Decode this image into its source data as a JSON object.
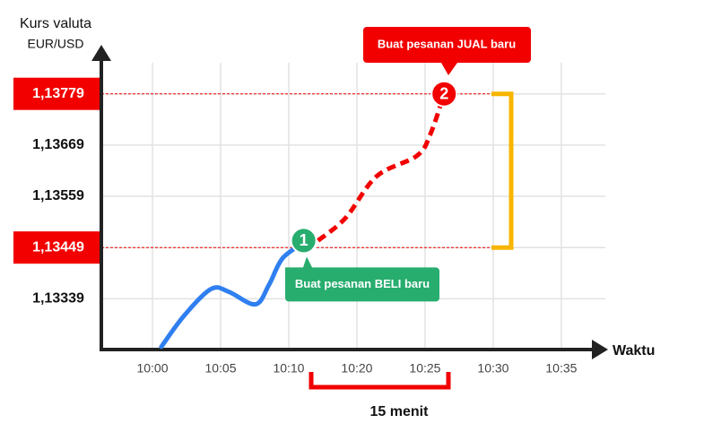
{
  "chart_data": {
    "type": "line",
    "y_label": "Kurs valuta",
    "y_unit": "EUR/USD",
    "x_label": "Waktu",
    "xlim": [
      -0.75,
      6.58
    ],
    "xticks": [
      {
        "value": 0,
        "label": "10:00"
      },
      {
        "value": 1,
        "label": "10:05"
      },
      {
        "value": 2,
        "label": "10:10"
      },
      {
        "value": 3,
        "label": "10:20"
      },
      {
        "value": 4,
        "label": "10:25"
      },
      {
        "value": 5,
        "label": "10:30"
      },
      {
        "value": 6,
        "label": "10:35"
      }
    ],
    "ylim": [
      1.1323,
      1.13865
    ],
    "yticks": [
      {
        "value": 1.13339,
        "label": "1,13339"
      },
      {
        "value": 1.13449,
        "label": "1,13449"
      },
      {
        "value": 1.13559,
        "label": "1,13559"
      },
      {
        "value": 1.13669,
        "label": "1,13669"
      },
      {
        "value": 1.13779,
        "label": "1,13779"
      }
    ],
    "highlight_ticks": [
      1,
      4
    ],
    "grid": true,
    "series": [
      {
        "color": "#2f7ff0",
        "style": "solid",
        "x": [
          0.13,
          0.46,
          0.86,
          1.12,
          1.51,
          1.71,
          1.91,
          2.24
        ],
        "values": [
          1.13236,
          1.13302,
          1.1336,
          1.13354,
          1.13327,
          1.13369,
          1.13426,
          1.13461
        ]
      },
      {
        "color": "#f20000",
        "style": "dashed",
        "x": [
          2.43,
          2.83,
          3.29,
          3.88,
          4.08,
          4.28
        ],
        "values": [
          1.13464,
          1.13512,
          1.13602,
          1.13646,
          1.13693,
          1.13779
        ]
      }
    ],
    "annotations": {
      "buy": {
        "marker": "1",
        "text": "Buat pesanan BELI baru",
        "color": "#27ad6e"
      },
      "sell": {
        "marker": "2",
        "text": "Buat pesanan JUAL baru",
        "color": "#f20000"
      },
      "duration": "15 menit"
    }
  }
}
